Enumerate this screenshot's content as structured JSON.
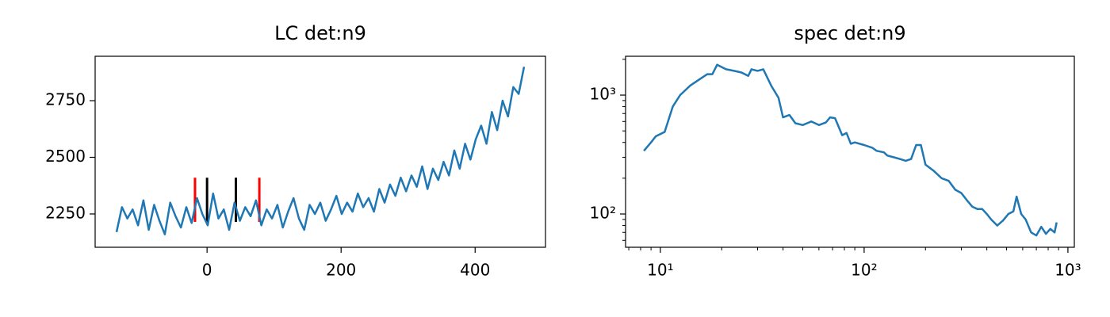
{
  "chart_data": [
    {
      "type": "line",
      "title": "LC det:n9",
      "color": "#1f77b4",
      "x": [
        -135,
        -127,
        -119,
        -111,
        -103,
        -95,
        -87,
        -79,
        -71,
        -63,
        -55,
        -47,
        -39,
        -31,
        -23,
        -15,
        -7,
        1,
        9,
        17,
        25,
        33,
        41,
        49,
        57,
        65,
        73,
        81,
        89,
        97,
        105,
        113,
        121,
        129,
        137,
        145,
        153,
        161,
        169,
        177,
        185,
        193,
        201,
        209,
        217,
        225,
        233,
        241,
        249,
        257,
        265,
        273,
        281,
        289,
        297,
        305,
        313,
        321,
        329,
        337,
        345,
        353,
        361,
        369,
        377,
        385,
        393,
        401,
        409,
        417,
        425,
        433,
        441,
        449,
        457,
        465,
        473
      ],
      "values": [
        2170,
        2280,
        2230,
        2270,
        2200,
        2310,
        2180,
        2290,
        2220,
        2160,
        2300,
        2240,
        2190,
        2280,
        2210,
        2320,
        2250,
        2200,
        2340,
        2230,
        2270,
        2180,
        2300,
        2220,
        2280,
        2240,
        2310,
        2200,
        2270,
        2230,
        2290,
        2190,
        2260,
        2320,
        2230,
        2180,
        2290,
        2250,
        2300,
        2220,
        2270,
        2330,
        2250,
        2300,
        2260,
        2340,
        2280,
        2320,
        2260,
        2360,
        2300,
        2380,
        2330,
        2410,
        2350,
        2420,
        2370,
        2460,
        2360,
        2450,
        2400,
        2480,
        2420,
        2530,
        2450,
        2560,
        2490,
        2580,
        2640,
        2560,
        2700,
        2620,
        2750,
        2680,
        2810,
        2780,
        2900
      ],
      "vlines": [
        {
          "x": -18,
          "ymin": 2215,
          "ymax": 2410,
          "color": "#ff0000"
        },
        {
          "x": 0,
          "ymin": 2215,
          "ymax": 2410,
          "color": "#000000"
        },
        {
          "x": 43,
          "ymin": 2215,
          "ymax": 2410,
          "color": "#000000"
        },
        {
          "x": 78,
          "ymin": 2215,
          "ymax": 2410,
          "color": "#ff0000"
        }
      ],
      "xlim": [
        -167,
        505
      ],
      "ylim": [
        2103,
        2946
      ],
      "xticks": [
        0,
        200,
        400
      ],
      "yticks": [
        2250,
        2500,
        2750
      ]
    },
    {
      "type": "line",
      "title": "spec det:n9",
      "color": "#1f77b4",
      "xlog": true,
      "ylog": true,
      "x": [
        8.3,
        9,
        9.5,
        10.5,
        11.5,
        12.5,
        14,
        16,
        17,
        18,
        19,
        21,
        23,
        25,
        27,
        28,
        30,
        32,
        35,
        38,
        40,
        43,
        46,
        50,
        55,
        60,
        65,
        68,
        72,
        78,
        82,
        86,
        90,
        100,
        110,
        115,
        125,
        130,
        140,
        150,
        160,
        170,
        180,
        190,
        200,
        220,
        240,
        260,
        280,
        300,
        320,
        340,
        360,
        380,
        400,
        420,
        450,
        480,
        510,
        540,
        560,
        590,
        620,
        660,
        700,
        740,
        780,
        820,
        860,
        880
      ],
      "values": [
        340,
        400,
        450,
        490,
        800,
        1000,
        1200,
        1400,
        1500,
        1500,
        1800,
        1650,
        1600,
        1550,
        1450,
        1650,
        1600,
        1650,
        1200,
        950,
        650,
        680,
        580,
        560,
        600,
        560,
        590,
        650,
        640,
        460,
        480,
        390,
        400,
        380,
        360,
        340,
        330,
        310,
        300,
        290,
        280,
        290,
        380,
        380,
        260,
        230,
        200,
        190,
        160,
        150,
        130,
        115,
        110,
        110,
        100,
        90,
        80,
        88,
        100,
        105,
        140,
        100,
        90,
        70,
        66,
        78,
        68,
        75,
        70,
        85
      ],
      "xlim": [
        6.75,
        1075
      ],
      "ylim": [
        52.5,
        2122
      ],
      "xticks": [
        {
          "value": 10,
          "label": "10¹"
        },
        {
          "value": 100,
          "label": "10²"
        },
        {
          "value": 1000,
          "label": "10³"
        }
      ],
      "yticks": [
        {
          "value": 100,
          "label": "10²"
        },
        {
          "value": 1000,
          "label": "10³"
        }
      ],
      "xminorticks": [
        7,
        8,
        9,
        20,
        30,
        40,
        50,
        60,
        70,
        80,
        90,
        200,
        300,
        400,
        500,
        600,
        700,
        800,
        900
      ],
      "yminorticks": [
        60,
        70,
        80,
        90,
        200,
        300,
        400,
        500,
        600,
        700,
        800,
        900,
        2000
      ]
    }
  ]
}
